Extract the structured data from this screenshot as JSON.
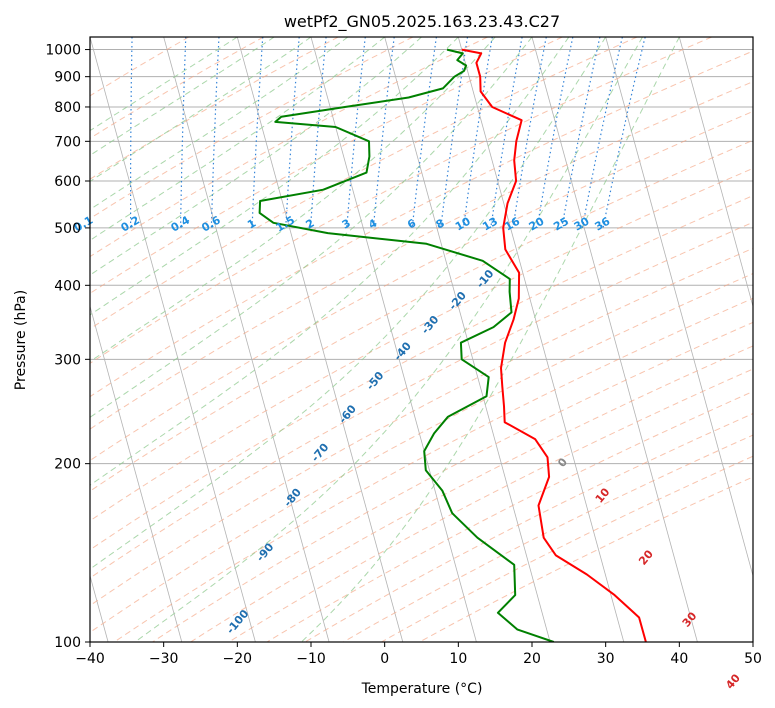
{
  "chart_data": {
    "type": "line",
    "title": "wetPf2_GN05.2025.163.23.43.C27",
    "xlabel": "Temperature (°C)",
    "ylabel": "Pressure (hPa)",
    "xlim": [
      -40,
      50
    ],
    "ylim": [
      1050,
      100
    ],
    "y_scale": "log",
    "grid": true,
    "x_ticks": [
      -40,
      -30,
      -20,
      -10,
      0,
      10,
      20,
      30,
      40,
      50
    ],
    "x_tick_labels": [
      "−40",
      "−30",
      "−20",
      "−10",
      "0",
      "10",
      "20",
      "30",
      "40",
      "50"
    ],
    "y_ticks": [
      1000,
      900,
      800,
      700,
      600,
      500,
      400,
      300,
      200,
      100
    ],
    "y_tick_labels": [
      "1000",
      "900",
      "800",
      "700",
      "600",
      "500",
      "400",
      "300",
      "200",
      "100"
    ],
    "series": [
      {
        "color": "#ff0000",
        "points": [
          [
            1000,
            10.0
          ],
          [
            985,
            12.5
          ],
          [
            950,
            11.5
          ],
          [
            900,
            11.5
          ],
          [
            850,
            11.0
          ],
          [
            800,
            12.0
          ],
          [
            760,
            15.5
          ],
          [
            700,
            14.0
          ],
          [
            650,
            13.0
          ],
          [
            600,
            12.5
          ],
          [
            550,
            10.5
          ],
          [
            500,
            9.0
          ],
          [
            460,
            8.5
          ],
          [
            420,
            9.5
          ],
          [
            380,
            8.5
          ],
          [
            350,
            7.0
          ],
          [
            320,
            5.0
          ],
          [
            290,
            3.5
          ],
          [
            270,
            3.0
          ],
          [
            250,
            2.5
          ],
          [
            235,
            2.0
          ],
          [
            220,
            5.5
          ],
          [
            205,
            6.5
          ],
          [
            190,
            6.0
          ],
          [
            170,
            3.5
          ],
          [
            150,
            3.0
          ],
          [
            140,
            4.0
          ],
          [
            130,
            7.5
          ],
          [
            120,
            10.5
          ],
          [
            110,
            13.0
          ],
          [
            100,
            13.0
          ]
        ]
      },
      {
        "color": "#008000",
        "points": [
          [
            1000,
            8.0
          ],
          [
            985,
            10.0
          ],
          [
            960,
            9.0
          ],
          [
            940,
            10.0
          ],
          [
            920,
            9.5
          ],
          [
            900,
            8.0
          ],
          [
            860,
            6.0
          ],
          [
            830,
            1.0
          ],
          [
            800,
            -8.0
          ],
          [
            770,
            -17.0
          ],
          [
            755,
            -18.0
          ],
          [
            740,
            -10.0
          ],
          [
            700,
            -6.0
          ],
          [
            660,
            -6.5
          ],
          [
            620,
            -7.5
          ],
          [
            580,
            -14.0
          ],
          [
            555,
            -23.0
          ],
          [
            530,
            -23.5
          ],
          [
            510,
            -22.0
          ],
          [
            490,
            -15.0
          ],
          [
            470,
            -2.0
          ],
          [
            440,
            5.0
          ],
          [
            410,
            8.0
          ],
          [
            390,
            7.5
          ],
          [
            360,
            7.0
          ],
          [
            340,
            4.0
          ],
          [
            320,
            -1.0
          ],
          [
            300,
            -1.5
          ],
          [
            280,
            1.5
          ],
          [
            260,
            0.5
          ],
          [
            240,
            -5.5
          ],
          [
            225,
            -8.0
          ],
          [
            210,
            -10.0
          ],
          [
            195,
            -10.5
          ],
          [
            180,
            -9.0
          ],
          [
            165,
            -8.5
          ],
          [
            150,
            -6.0
          ],
          [
            135,
            -2.0
          ],
          [
            120,
            -3.0
          ],
          [
            112,
            -6.0
          ],
          [
            105,
            -4.0
          ],
          [
            100,
            0.5
          ]
        ]
      }
    ],
    "dry_adiabat_labels": [
      "-100",
      "-90",
      "-80",
      "-70",
      "-60",
      "-50",
      "-40",
      "-30",
      "-20",
      "-10",
      "0",
      "10",
      "20",
      "30",
      "40"
    ],
    "mixing_ratio_labels": [
      "0.1",
      "0.2",
      "0.4",
      "0.6",
      "1",
      "1.5",
      "2",
      "3",
      "4",
      "6",
      "8",
      "10",
      "13",
      "16",
      "20",
      "25",
      "30",
      "36"
    ],
    "colors": {
      "temperature": "#ff0000",
      "dewpoint": "#008000",
      "dry_adiabat": "#f4a582",
      "moist_adiabat": "#8fc98f",
      "mixing_ratio": "#1f77d4",
      "isotherm": "#808080",
      "isobar_grid": "#b0b0b0",
      "label_dry": "#1f6fb0",
      "label_mixing": "#1f8fe0",
      "label_red": "#d62728"
    }
  }
}
